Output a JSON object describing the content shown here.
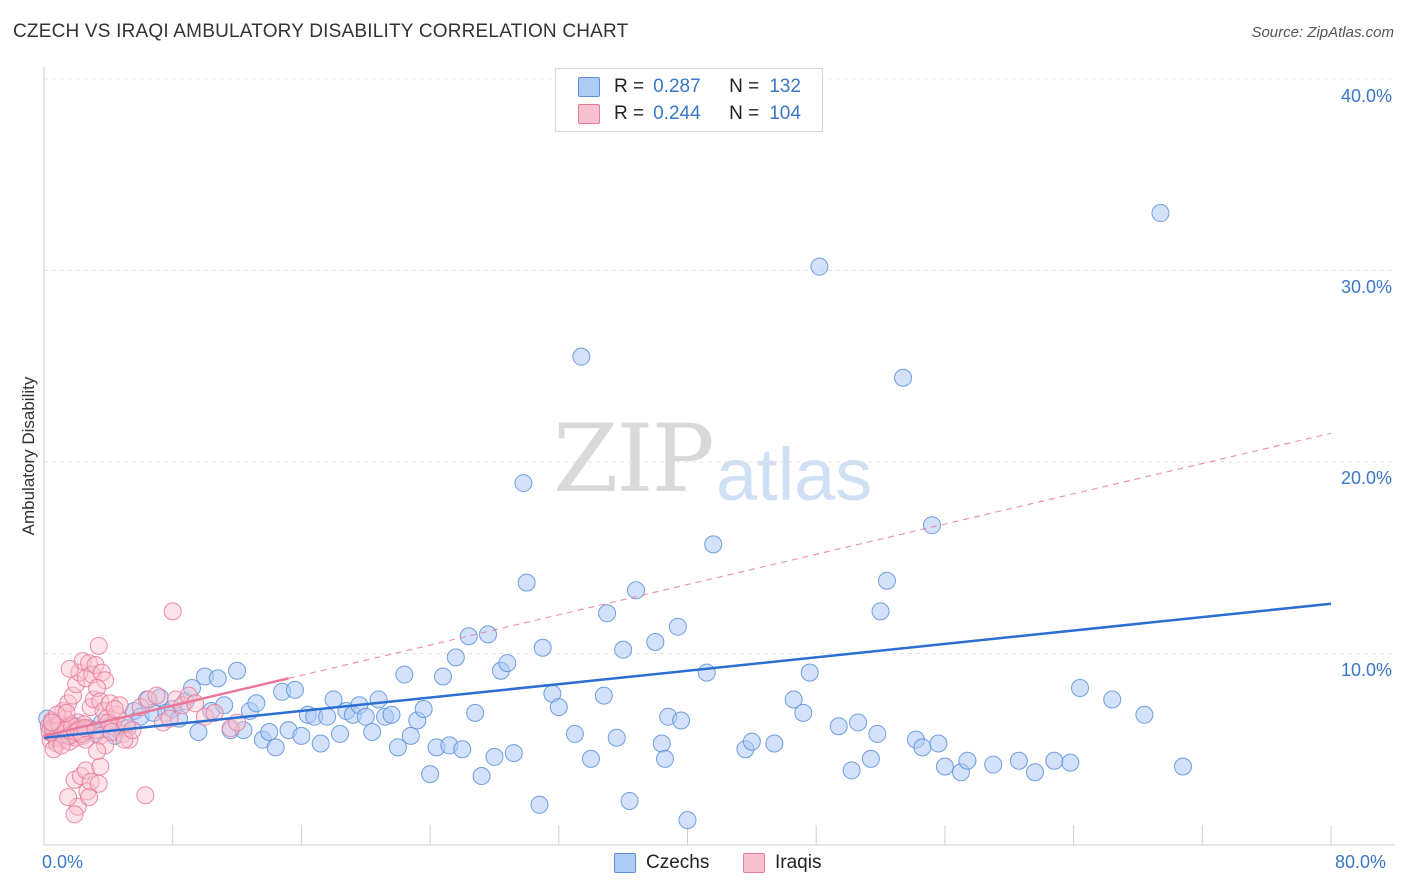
{
  "title": "CZECH VS IRAQI AMBULATORY DISABILITY CORRELATION CHART",
  "source": "Source: ZipAtlas.com",
  "watermark": {
    "zip": "ZIP",
    "atlas": "atlas"
  },
  "legend_top": [
    {
      "r_label": "R =",
      "r": "0.287",
      "n_label": "N =",
      "n": "132",
      "fill": "#aecbf5",
      "stroke": "#5b8fd9"
    },
    {
      "r_label": "R =",
      "r": "0.244",
      "n_label": "N =",
      "n": "104",
      "fill": "#f9c0d0",
      "stroke": "#e67a9a"
    }
  ],
  "legend_bottom": [
    {
      "label": "Czechs",
      "fill": "#aecbf5",
      "stroke": "#5b8fd9"
    },
    {
      "label": "Iraqis",
      "fill": "#f9c0d0",
      "stroke": "#e67a9a"
    }
  ],
  "chart_data": {
    "type": "scatter",
    "title": "CZECH VS IRAQI AMBULATORY DISABILITY CORRELATION CHART",
    "xlabel": "",
    "ylabel": "Ambulatory Disability",
    "xlim": [
      0,
      80
    ],
    "ylim": [
      0,
      40
    ],
    "x_tick_labels": [
      "0.0%",
      "80.0%"
    ],
    "y_ticks": [
      10,
      20,
      30,
      40
    ],
    "y_tick_labels": [
      "10.0%",
      "20.0%",
      "30.0%",
      "40.0%"
    ],
    "grid": true,
    "legend_position": "top-center",
    "series": [
      {
        "name": "Czechs",
        "color": "#5b8fd9",
        "fill": "#aecbf5",
        "trend": {
          "x": [
            0,
            80
          ],
          "y": [
            5.6,
            12.6
          ],
          "color": "#2a6fd1",
          "style": "solid"
        },
        "points": [
          [
            0.2,
            6.6
          ],
          [
            0.4,
            6.1
          ],
          [
            0.6,
            5.9
          ],
          [
            0.8,
            6.3
          ],
          [
            1.0,
            5.8
          ],
          [
            1.3,
            6.0
          ],
          [
            1.6,
            5.7
          ],
          [
            2.0,
            6.2
          ],
          [
            2.4,
            5.9
          ],
          [
            2.8,
            6.1
          ],
          [
            3.2,
            5.8
          ],
          [
            3.6,
            6.4
          ],
          [
            4.0,
            6.0
          ],
          [
            4.4,
            5.7
          ],
          [
            4.8,
            6.2
          ],
          [
            5.2,
            6.1
          ],
          [
            5.6,
            7.0
          ],
          [
            6.0,
            6.7
          ],
          [
            6.4,
            7.6
          ],
          [
            6.8,
            6.9
          ],
          [
            7.2,
            7.7
          ],
          [
            7.6,
            6.9
          ],
          [
            8.0,
            7.1
          ],
          [
            8.4,
            6.6
          ],
          [
            8.8,
            7.5
          ],
          [
            9.2,
            8.2
          ],
          [
            9.6,
            5.9
          ],
          [
            10.0,
            8.8
          ],
          [
            10.4,
            7.0
          ],
          [
            10.8,
            8.7
          ],
          [
            11.2,
            7.3
          ],
          [
            11.6,
            6.0
          ],
          [
            12.0,
            9.1
          ],
          [
            12.4,
            6.0
          ],
          [
            12.8,
            7.0
          ],
          [
            13.2,
            7.4
          ],
          [
            13.6,
            5.5
          ],
          [
            14.0,
            5.9
          ],
          [
            14.4,
            5.1
          ],
          [
            14.8,
            8.0
          ],
          [
            15.2,
            6.0
          ],
          [
            15.6,
            8.1
          ],
          [
            16.0,
            5.7
          ],
          [
            16.4,
            6.8
          ],
          [
            16.8,
            6.7
          ],
          [
            17.2,
            5.3
          ],
          [
            17.6,
            6.7
          ],
          [
            18.0,
            7.6
          ],
          [
            18.4,
            5.8
          ],
          [
            18.8,
            7.0
          ],
          [
            19.2,
            6.8
          ],
          [
            19.6,
            7.3
          ],
          [
            20.0,
            6.7
          ],
          [
            20.4,
            5.9
          ],
          [
            20.8,
            7.6
          ],
          [
            21.2,
            6.7
          ],
          [
            21.6,
            6.8
          ],
          [
            22.0,
            5.1
          ],
          [
            22.4,
            8.9
          ],
          [
            22.8,
            5.7
          ],
          [
            23.2,
            6.5
          ],
          [
            23.6,
            7.1
          ],
          [
            24.0,
            3.7
          ],
          [
            24.4,
            5.1
          ],
          [
            24.8,
            8.8
          ],
          [
            25.2,
            5.2
          ],
          [
            25.6,
            9.8
          ],
          [
            26.0,
            5.0
          ],
          [
            26.4,
            10.9
          ],
          [
            26.8,
            6.9
          ],
          [
            27.2,
            3.6
          ],
          [
            27.6,
            11.0
          ],
          [
            28.0,
            4.6
          ],
          [
            28.4,
            9.1
          ],
          [
            28.8,
            9.5
          ],
          [
            29.2,
            4.8
          ],
          [
            29.8,
            18.9
          ],
          [
            30.0,
            13.7
          ],
          [
            30.8,
            2.1
          ],
          [
            31.0,
            10.3
          ],
          [
            31.6,
            7.9
          ],
          [
            32.0,
            7.2
          ],
          [
            33.0,
            5.8
          ],
          [
            33.4,
            25.5
          ],
          [
            34.0,
            4.5
          ],
          [
            34.8,
            7.8
          ],
          [
            35.0,
            12.1
          ],
          [
            35.6,
            5.6
          ],
          [
            36.0,
            10.2
          ],
          [
            36.4,
            2.3
          ],
          [
            36.8,
            13.3
          ],
          [
            38.0,
            10.6
          ],
          [
            38.4,
            5.3
          ],
          [
            38.6,
            4.5
          ],
          [
            38.8,
            6.7
          ],
          [
            39.4,
            11.4
          ],
          [
            39.6,
            6.5
          ],
          [
            40.0,
            1.3
          ],
          [
            41.2,
            9.0
          ],
          [
            41.6,
            15.7
          ],
          [
            43.6,
            5.0
          ],
          [
            44.0,
            5.4
          ],
          [
            45.4,
            5.3
          ],
          [
            46.6,
            7.6
          ],
          [
            47.2,
            6.9
          ],
          [
            47.6,
            9.0
          ],
          [
            48.2,
            30.2
          ],
          [
            49.4,
            6.2
          ],
          [
            50.2,
            3.9
          ],
          [
            50.6,
            6.4
          ],
          [
            51.4,
            4.5
          ],
          [
            51.8,
            5.8
          ],
          [
            52.0,
            12.2
          ],
          [
            52.4,
            13.8
          ],
          [
            53.4,
            24.4
          ],
          [
            54.2,
            5.5
          ],
          [
            54.6,
            5.1
          ],
          [
            55.2,
            16.7
          ],
          [
            55.6,
            5.3
          ],
          [
            56.0,
            4.1
          ],
          [
            57.0,
            3.8
          ],
          [
            57.4,
            4.4
          ],
          [
            59.0,
            4.2
          ],
          [
            60.6,
            4.4
          ],
          [
            61.6,
            3.8
          ],
          [
            62.8,
            4.4
          ],
          [
            63.8,
            4.3
          ],
          [
            64.4,
            8.2
          ],
          [
            66.4,
            7.6
          ],
          [
            68.4,
            6.8
          ],
          [
            69.4,
            33.0
          ],
          [
            70.8,
            4.1
          ]
        ]
      },
      {
        "name": "Iraqis",
        "color": "#e67a9a",
        "fill": "#f9c0d0",
        "trend": {
          "x": [
            0,
            80
          ],
          "y": [
            5.7,
            21.5
          ],
          "color": "#e8799a",
          "style": "dashed",
          "solid_until_x": 15.2
        },
        "points": [
          [
            0.3,
            6.2
          ],
          [
            0.4,
            5.5
          ],
          [
            0.5,
            6.5
          ],
          [
            0.6,
            5.8
          ],
          [
            0.7,
            6.0
          ],
          [
            0.8,
            5.3
          ],
          [
            0.9,
            6.4
          ],
          [
            1.0,
            5.7
          ],
          [
            1.1,
            6.1
          ],
          [
            1.2,
            5.5
          ],
          [
            1.3,
            6.6
          ],
          [
            1.4,
            5.9
          ],
          [
            1.5,
            6.2
          ],
          [
            1.6,
            5.4
          ],
          [
            1.7,
            6.3
          ],
          [
            1.8,
            5.8
          ],
          [
            1.9,
            6.0
          ],
          [
            2.0,
            5.6
          ],
          [
            2.1,
            6.4
          ],
          [
            2.2,
            5.9
          ],
          [
            2.3,
            6.1
          ],
          [
            2.4,
            5.7
          ],
          [
            2.5,
            6.3
          ],
          [
            2.6,
            5.5
          ],
          [
            2.7,
            6.0
          ],
          [
            0.35,
            5.9
          ],
          [
            0.55,
            6.1
          ],
          [
            0.75,
            5.6
          ],
          [
            0.95,
            6.3
          ],
          [
            1.15,
            5.8
          ],
          [
            1.35,
            6.0
          ],
          [
            1.55,
            5.7
          ],
          [
            1.75,
            6.2
          ],
          [
            1.95,
            5.9
          ],
          [
            2.15,
            6.0
          ],
          [
            2.35,
            5.8
          ],
          [
            2.55,
            6.1
          ],
          [
            1.2,
            7.0
          ],
          [
            1.5,
            7.4
          ],
          [
            1.8,
            7.8
          ],
          [
            2.0,
            8.4
          ],
          [
            2.2,
            9.0
          ],
          [
            2.4,
            9.6
          ],
          [
            2.6,
            8.7
          ],
          [
            1.6,
            9.2
          ],
          [
            2.8,
            9.5
          ],
          [
            3.0,
            8.9
          ],
          [
            3.2,
            9.4
          ],
          [
            3.4,
            10.4
          ],
          [
            3.6,
            9.0
          ],
          [
            3.8,
            8.6
          ],
          [
            2.9,
            7.2
          ],
          [
            3.1,
            7.6
          ],
          [
            3.3,
            8.2
          ],
          [
            3.5,
            7.5
          ],
          [
            3.7,
            7.0
          ],
          [
            3.9,
            6.6
          ],
          [
            4.1,
            7.4
          ],
          [
            4.3,
            6.2
          ],
          [
            4.5,
            6.8
          ],
          [
            4.7,
            7.3
          ],
          [
            4.9,
            5.8
          ],
          [
            5.1,
            6.3
          ],
          [
            5.3,
            5.5
          ],
          [
            3.2,
            6.0
          ],
          [
            3.5,
            5.7
          ],
          [
            3.8,
            5.2
          ],
          [
            4.0,
            6.4
          ],
          [
            4.2,
            5.9
          ],
          [
            4.4,
            7.1
          ],
          [
            1.9,
            3.4
          ],
          [
            2.1,
            2.0
          ],
          [
            2.3,
            3.6
          ],
          [
            2.6,
            3.9
          ],
          [
            2.7,
            2.8
          ],
          [
            2.9,
            3.3
          ],
          [
            2.8,
            2.5
          ],
          [
            3.5,
            4.1
          ],
          [
            3.4,
            3.2
          ],
          [
            1.5,
            2.5
          ],
          [
            1.9,
            1.6
          ],
          [
            3.3,
            4.9
          ],
          [
            5.0,
            5.5
          ],
          [
            5.5,
            6.0
          ],
          [
            6.0,
            7.2
          ],
          [
            6.5,
            7.6
          ],
          [
            7.0,
            7.8
          ],
          [
            7.4,
            6.4
          ],
          [
            7.8,
            6.6
          ],
          [
            8.2,
            7.6
          ],
          [
            8.6,
            7.3
          ],
          [
            9.0,
            7.8
          ],
          [
            9.4,
            7.4
          ],
          [
            10.0,
            6.7
          ],
          [
            10.6,
            6.9
          ],
          [
            11.6,
            6.1
          ],
          [
            12.0,
            6.4
          ],
          [
            8.0,
            12.2
          ],
          [
            6.3,
            2.6
          ],
          [
            0.6,
            5.0
          ],
          [
            0.8,
            6.8
          ],
          [
            1.1,
            5.2
          ],
          [
            1.4,
            6.9
          ],
          [
            0.5,
            6.4
          ]
        ]
      }
    ]
  }
}
